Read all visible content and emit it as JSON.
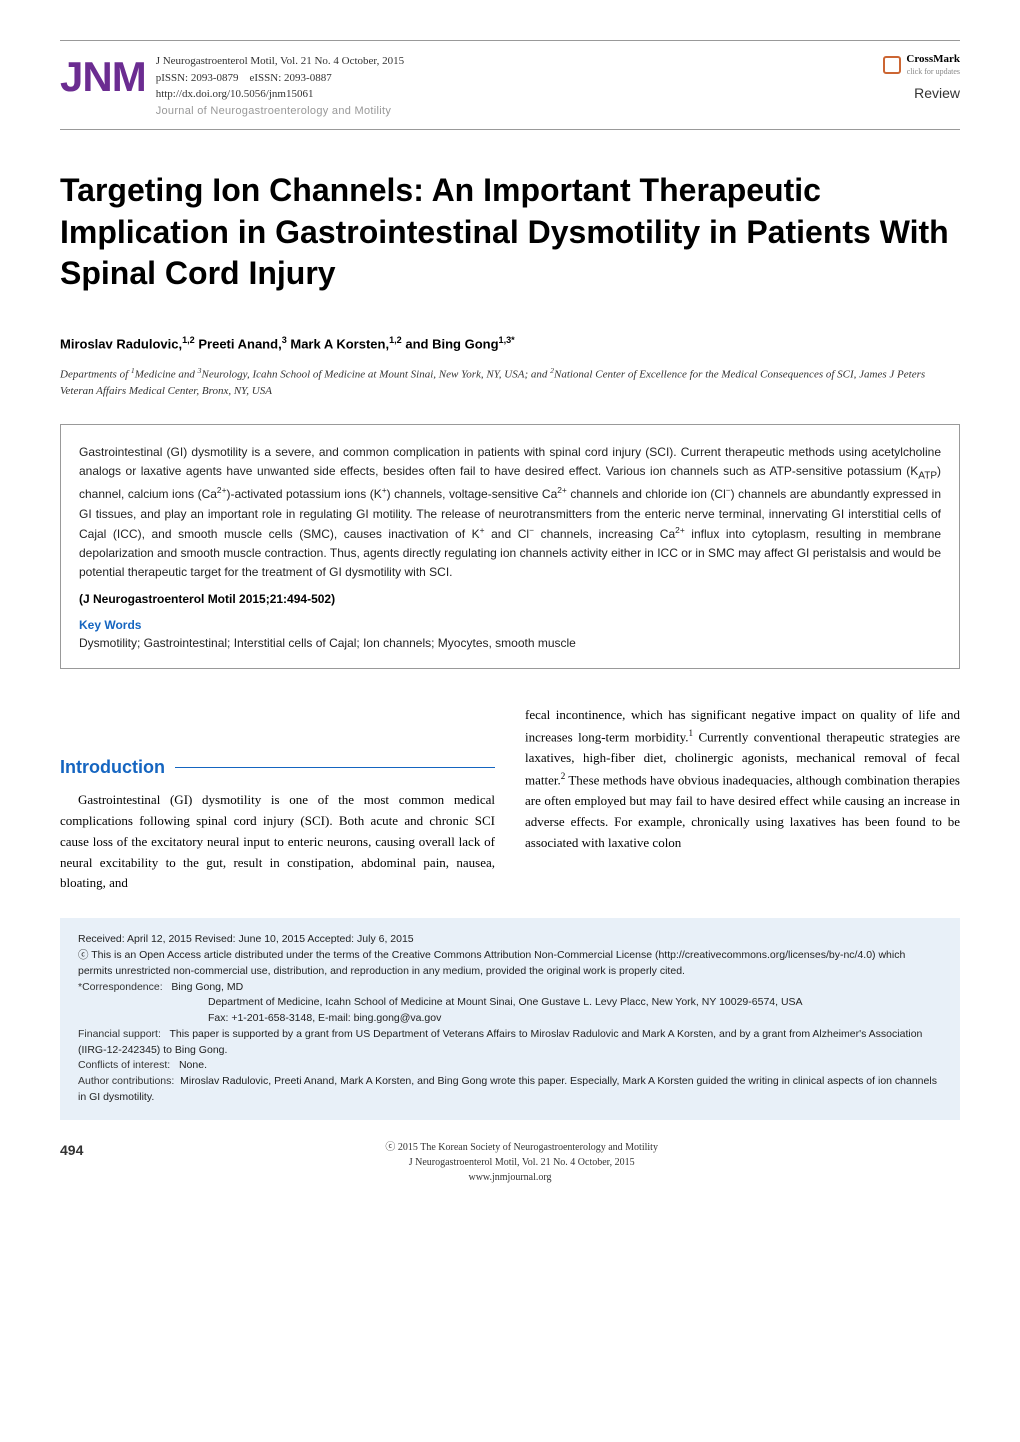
{
  "header": {
    "logo_text": "JNM",
    "journal_ref": "J Neurogastroenterol Motil, Vol. 21 No. 4 October, 2015",
    "pissn": "pISSN: 2093-0879",
    "eissn": "eISSN: 2093-0887",
    "doi": "http://dx.doi.org/10.5056/jnm15061",
    "journal_name": "Journal of Neurogastroenterology and Motility",
    "crossmark_label": "CrossMark",
    "crossmark_sub": "click for updates",
    "article_type": "Review"
  },
  "article": {
    "title": "Targeting Ion Channels: An Important Therapeutic Implication in Gastrointestinal Dysmotility in Patients With Spinal Cord Injury",
    "authors_html": "Miroslav Radulovic,<sup>1,2</sup> Preeti Anand,<sup>3</sup> Mark A Korsten,<sup>1,2</sup> and Bing Gong<sup>1,3*</sup>",
    "affiliations_html": "Departments of <sup>1</sup>Medicine and <sup>3</sup>Neurology, Icahn School of Medicine at Mount Sinai, New York, NY, USA; and <sup>2</sup>National Center of Excellence for the Medical Consequences of SCI, James J Peters Veteran Affairs Medical Center, Bronx, NY, USA"
  },
  "abstract": {
    "text_html": "Gastrointestinal (GI) dysmotility is a severe, and common complication in patients with spinal cord injury (SCI). Current therapeutic methods using acetylcholine analogs or laxative agents have unwanted side effects, besides often fail to have desired effect. Various ion channels such as ATP-sensitive potassium (K<sub>ATP</sub>) channel, calcium ions (Ca<sup>2+</sup>)-activated potassium ions (K<sup>+</sup>) channels, voltage-sensitive Ca<sup>2+</sup> channels and chloride ion (Cl<sup>−</sup>) channels are abundantly expressed in GI tissues, and play an important role in regulating GI motility. The release of neurotransmitters from the enteric nerve terminal, innervating GI interstitial cells of Cajal (ICC), and smooth muscle cells (SMC), causes inactivation of K<sup>+</sup> and Cl<sup>−</sup> channels, increasing Ca<sup>2+</sup> influx into cytoplasm, resulting in membrane depolarization and smooth muscle contraction. Thus, agents directly regulating ion channels activity either in ICC or in SMC may affect GI peristalsis and would be potential therapeutic target for the treatment of GI dysmotility with SCI.",
    "citation": "(J Neurogastroenterol Motil 2015;21:494-502)",
    "kw_title": "Key Words",
    "keywords": "Dysmotility; Gastrointestinal; Interstitial cells of Cajal; Ion channels; Myocytes, smooth muscle"
  },
  "intro": {
    "heading": "Introduction",
    "col1": "Gastrointestinal (GI) dysmotility is one of the most common medical complications following spinal cord injury (SCI). Both acute and chronic SCI cause loss of the excitatory neural input to enteric neurons, causing overall lack of neural excitability to the gut, result in constipation, abdominal pain, nausea, bloating, and",
    "col2_html": "fecal incontinence, which has significant negative impact on quality of life and increases long-term morbidity.<sup>1</sup> Currently conventional therapeutic strategies are laxatives, high-fiber diet, cholinergic agonists, mechanical removal of fecal matter.<sup>2</sup> These methods have obvious inadequacies, although combination therapies are often employed but may fail to have desired effect while causing an increase in adverse effects. For example, chronically using laxatives has been found to be associated with laxative colon"
  },
  "info": {
    "dates": "Received: April 12, 2015   Revised: June 10, 2015   Accepted: July 6, 2015",
    "license": "ⓒ This is an Open Access article distributed under the terms of the Creative Commons Attribution Non-Commercial License (http://creativecommons.org/licenses/by-nc/4.0) which permits unrestricted non-commercial use, distribution, and reproduction in any medium, provided the original work is properly cited.",
    "corr_label": "*Correspondence:",
    "corr_name": "Bing Gong, MD",
    "corr_addr": "Department of Medicine, Icahn School of Medicine at Mount Sinai, One Gustave L. Levy Placc, New York, NY 10029-6574, USA",
    "corr_fax": "Fax: +1-201-658-3148, E-mail: bing.gong@va.gov",
    "fin_label": "Financial support:",
    "fin_text": "This paper is supported by a grant from US Department of Veterans Affairs to Miroslav Radulovic and Mark A Korsten, and by a grant from Alzheimer's Association (IIRG-12-242345) to Bing Gong.",
    "coi_label": "Conflicts of interest:",
    "coi_text": "None.",
    "auth_label": "Author contributions:",
    "auth_text": "Miroslav Radulovic, Preeti Anand, Mark A Korsten, and Bing Gong wrote this paper. Especially, Mark A Korsten guided the writing in clinical aspects of ion channels in GI dysmotility."
  },
  "footer": {
    "copyright": "ⓒ 2015 The Korean Society of Neurogastroenterology and Motility",
    "journal_ref": "J Neurogastroenterol Motil, Vol. 21 No. 4 October, 2015",
    "url": "www.jnmjournal.org",
    "page": "494"
  },
  "style": {
    "accent_purple": "#6b2c91",
    "accent_blue": "#1565c0",
    "info_bg": "#e8f0f8",
    "border_color": "#999999",
    "crossmark_color": "#cc6633"
  }
}
